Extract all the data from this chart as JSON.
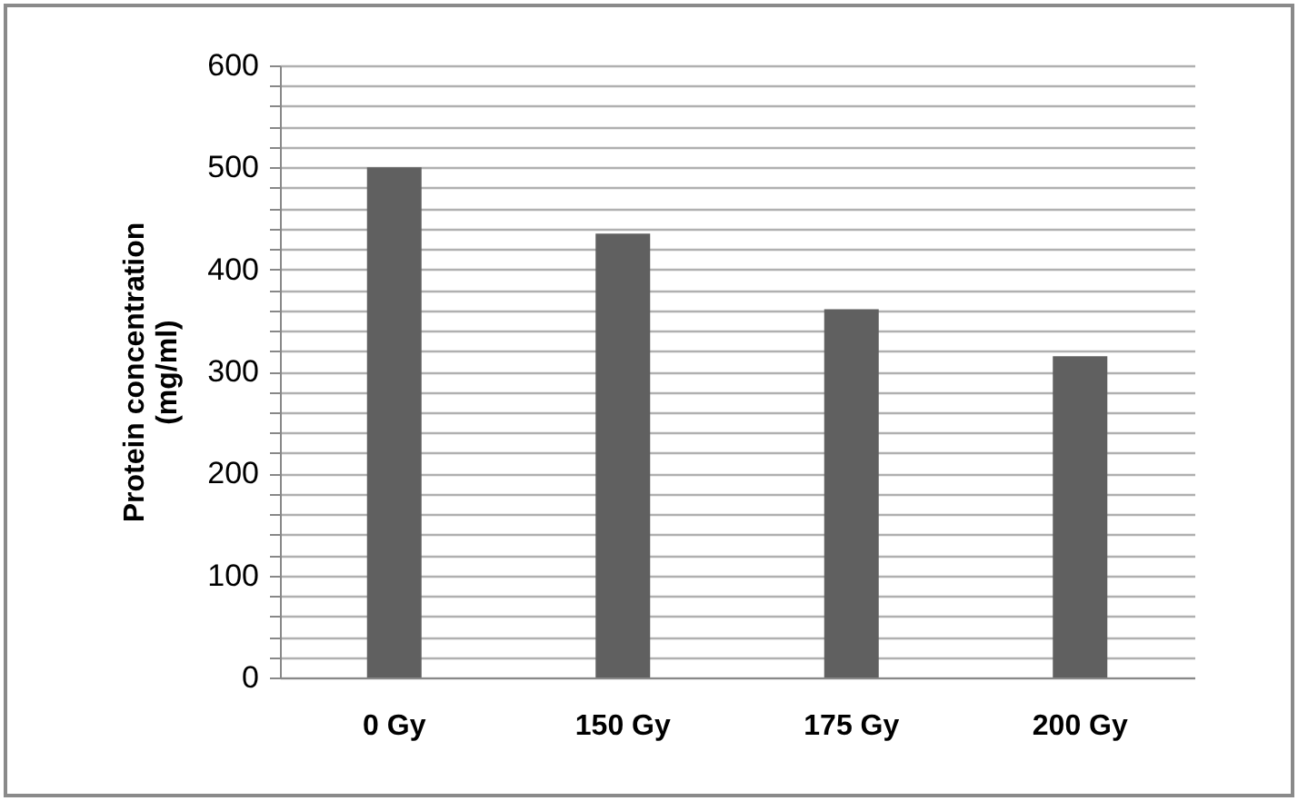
{
  "chart_data": {
    "type": "bar",
    "ylabel": "Protein concentration (mg/ml)",
    "categories": [
      "0 Gy",
      "150 Gy",
      "175 Gy",
      "200 Gy"
    ],
    "values": [
      500,
      435,
      361,
      315
    ],
    "color": "#606060",
    "ylim": [
      0,
      600
    ],
    "yticks": [
      0,
      {
        "value": 20,
        "label": null
      },
      {
        "value": 40,
        "label": null
      },
      {
        "value": 60,
        "label": null
      },
      {
        "value": 80,
        "label": null
      },
      100,
      {
        "value": 120,
        "label": null
      },
      {
        "value": 140,
        "label": null
      },
      {
        "value": 160,
        "label": null
      },
      {
        "value": 180,
        "label": null
      },
      200,
      {
        "value": 220,
        "label": null
      },
      {
        "value": 240,
        "label": null
      },
      {
        "value": 260,
        "label": null
      },
      {
        "value": 280,
        "label": null
      },
      300,
      {
        "value": 320,
        "label": null
      },
      {
        "value": 340,
        "label": null
      },
      {
        "value": 360,
        "label": null
      },
      {
        "value": 380,
        "label": null
      },
      400,
      {
        "value": 420,
        "label": null
      },
      {
        "value": 440,
        "label": null
      },
      {
        "value": 460,
        "label": null
      },
      {
        "value": 480,
        "label": null
      },
      500,
      {
        "value": 520,
        "label": null
      },
      {
        "value": 540,
        "label": null
      },
      {
        "value": 560,
        "label": null
      },
      {
        "value": 580,
        "label": null
      },
      600
    ],
    "grid": "y"
  }
}
